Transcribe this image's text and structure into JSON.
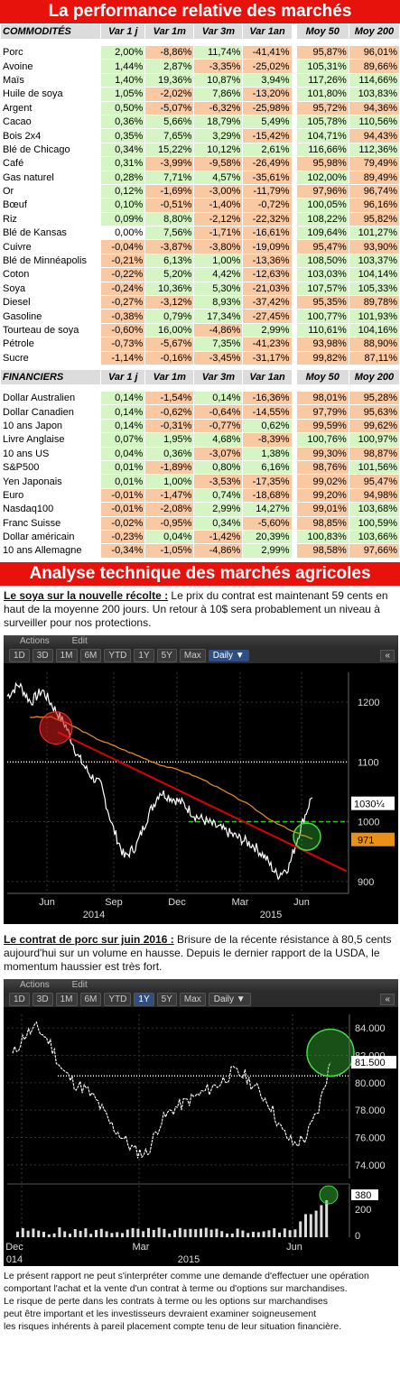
{
  "title": "La performance relative des marchés",
  "commodities": {
    "header": [
      "COMMODITÉS",
      "Var 1 j",
      "Var 1m",
      "Var 3m",
      "Var 1an",
      "Moy 50",
      "Moy 200"
    ],
    "rows": [
      [
        "Porc",
        "2,00%",
        "-8,86%",
        "11,74%",
        "-41,41%",
        "95,87%",
        "96,01%"
      ],
      [
        "Avoine",
        "1,44%",
        "2,87%",
        "-3,35%",
        "-25,02%",
        "105,31%",
        "89,66%"
      ],
      [
        "Maïs",
        "1,40%",
        "19,36%",
        "10,87%",
        "3,94%",
        "117,26%",
        "114,66%"
      ],
      [
        "Huile de soya",
        "1,05%",
        "-2,02%",
        "7,86%",
        "-13,20%",
        "101,80%",
        "103,83%"
      ],
      [
        "Argent",
        "0,50%",
        "-5,07%",
        "-6,32%",
        "-25,98%",
        "95,72%",
        "94,36%"
      ],
      [
        "Cacao",
        "0,36%",
        "5,66%",
        "18,79%",
        "5,49%",
        "105,78%",
        "110,56%"
      ],
      [
        "Bois 2x4",
        "0,35%",
        "7,65%",
        "3,29%",
        "-15,42%",
        "104,71%",
        "94,43%"
      ],
      [
        "Blé de Chicago",
        "0,34%",
        "15,22%",
        "10,12%",
        "2,61%",
        "116,66%",
        "112,36%"
      ],
      [
        "Café",
        "0,31%",
        "-3,99%",
        "-9,58%",
        "-26,49%",
        "95,98%",
        "79,49%"
      ],
      [
        "Gas naturel",
        "0,28%",
        "7,71%",
        "4,57%",
        "-35,61%",
        "102,00%",
        "89,49%"
      ],
      [
        "Or",
        "0,12%",
        "-1,69%",
        "-3,00%",
        "-11,79%",
        "97,96%",
        "96,74%"
      ],
      [
        "Bœuf",
        "0,10%",
        "-0,51%",
        "-1,40%",
        "-0,72%",
        "100,05%",
        "96,16%"
      ],
      [
        "Riz",
        "0,09%",
        "8,80%",
        "-2,12%",
        "-22,32%",
        "108,22%",
        "95,82%"
      ],
      [
        "Blé de Kansas",
        "0,00%",
        "7,56%",
        "-1,71%",
        "-16,61%",
        "109,64%",
        "101,27%"
      ],
      [
        "Cuivre",
        "-0,04%",
        "-3,87%",
        "-3,80%",
        "-19,09%",
        "95,47%",
        "93,90%"
      ],
      [
        "Blé de Minnéapolis",
        "-0,21%",
        "6,13%",
        "1,00%",
        "-13,36%",
        "108,50%",
        "103,37%"
      ],
      [
        "Coton",
        "-0,22%",
        "5,20%",
        "4,42%",
        "-12,63%",
        "103,03%",
        "104,14%"
      ],
      [
        "Soya",
        "-0,24%",
        "10,36%",
        "5,30%",
        "-21,03%",
        "107,57%",
        "105,33%"
      ],
      [
        "Diesel",
        "-0,27%",
        "-3,12%",
        "8,93%",
        "-37,42%",
        "95,35%",
        "89,78%"
      ],
      [
        "Gasoline",
        "-0,38%",
        "0,79%",
        "17,34%",
        "-27,45%",
        "100,77%",
        "101,93%"
      ],
      [
        "Tourteau de soya",
        "-0,60%",
        "16,00%",
        "-4,86%",
        "2,99%",
        "110,61%",
        "104,16%"
      ],
      [
        "Pétrole",
        "-0,73%",
        "-5,67%",
        "7,35%",
        "-41,23%",
        "93,98%",
        "88,90%"
      ],
      [
        "Sucre",
        "-1,14%",
        "-0,16%",
        "-3,45%",
        "-31,17%",
        "99,82%",
        "87,11%"
      ]
    ]
  },
  "financials": {
    "header": [
      "FINANCIERS",
      "Var 1 j",
      "Var 1m",
      "Var 3m",
      "Var 1an",
      "Moy 50",
      "Moy 200"
    ],
    "rows": [
      [
        "Dollar Australien",
        "0,14%",
        "-1,54%",
        "0,14%",
        "-16,36%",
        "98,01%",
        "95,28%"
      ],
      [
        "Dollar Canadien",
        "0,14%",
        "-0,62%",
        "-0,64%",
        "-14,55%",
        "97,79%",
        "95,63%"
      ],
      [
        "10 ans Japon",
        "0,14%",
        "-0,31%",
        "-0,77%",
        "0,62%",
        "99,59%",
        "99,62%"
      ],
      [
        "Livre Anglaise",
        "0,07%",
        "1,95%",
        "4,68%",
        "-8,39%",
        "100,76%",
        "100,97%"
      ],
      [
        "10 ans US",
        "0,04%",
        "0,36%",
        "-3,07%",
        "1,38%",
        "99,30%",
        "98,87%"
      ],
      [
        "S&P500",
        "0,01%",
        "-1,89%",
        "0,80%",
        "6,16%",
        "98,76%",
        "101,56%"
      ],
      [
        "Yen Japonais",
        "0,01%",
        "1,00%",
        "-3,53%",
        "-17,35%",
        "99,02%",
        "95,47%"
      ],
      [
        "Euro",
        "-0,01%",
        "-1,47%",
        "0,74%",
        "-18,68%",
        "99,20%",
        "94,98%"
      ],
      [
        "Nasdaq100",
        "-0,01%",
        "-2,08%",
        "2,99%",
        "14,27%",
        "99,01%",
        "103,68%"
      ],
      [
        "Franc Suisse",
        "-0,02%",
        "-0,95%",
        "0,34%",
        "-5,60%",
        "98,85%",
        "100,59%"
      ],
      [
        "Dollar américain",
        "-0,23%",
        "0,04%",
        "-1,42%",
        "20,39%",
        "100,83%",
        "103,66%"
      ],
      [
        "10 ans Allemagne",
        "-0,34%",
        "-1,05%",
        "-4,86%",
        "2,99%",
        "98,58%",
        "97,66%"
      ]
    ]
  },
  "analysis_title": "Analyse technique des marchés agricoles",
  "soya": {
    "heading": "Le soya sur la nouvelle récolte :",
    "text": " Le prix du contrat est maintenant 59 cents en haut de la moyenne 200 jours. Un retour à 10$ sera probablement un niveau à surveiller pour nos protections."
  },
  "porc": {
    "heading": "Le contrat de porc sur juin 2016 :",
    "text": " Brisure de la récente résistance à 80,5 cents aujourd'hui sur un volume en hausse. Depuis le dernier rapport de la USDA, le momentum haussier est très fort."
  },
  "chart_toolbar": {
    "actions": "Actions",
    "edit": "Edit",
    "ranges": [
      "1D",
      "3D",
      "1M",
      "6M",
      "YTD",
      "1Y",
      "5Y",
      "Max"
    ],
    "frequency": "Daily ▼",
    "back": "«",
    "minus": "−"
  },
  "chart1": {
    "y_ticks": [
      "1200",
      "1100",
      "1000",
      "900"
    ],
    "x_labels": [
      "Jun",
      "Sep",
      "Dec",
      "Mar",
      "Jun"
    ],
    "year_labels": [
      "2014",
      "2015"
    ],
    "last_price": "1030¼",
    "ma_value": "971",
    "selected_range": "",
    "colors": {
      "price": "#ffffff",
      "ma": "#e08a1e",
      "trend": "#e00000",
      "support": "#22cc22"
    }
  },
  "chart2": {
    "y_ticks": [
      "84.000",
      "82.000",
      "80.000",
      "78.000",
      "76.000",
      "74.000"
    ],
    "last_price": "81.500",
    "vol_ticks": [
      "200",
      "0"
    ],
    "vol_value": "380",
    "x_labels": [
      "Dec",
      "Mar",
      "Jun"
    ],
    "year_labels": [
      "014",
      "2015"
    ],
    "selected_range": "1Y"
  },
  "chart_data": [
    {
      "type": "line",
      "xlabel": "",
      "ylabel": "",
      "ylim": [
        880,
        1250
      ],
      "x": [
        "Jun 2014",
        "Sep 2014",
        "Dec 2014",
        "Mar 2015",
        "Jun 2015"
      ],
      "series": [
        {
          "values": [
            1215,
            1060,
            1030,
            975,
            1030
          ]
        },
        {
          "values": [
            1175,
            1125,
            1085,
            1005,
            971
          ]
        }
      ]
    },
    {
      "type": "line",
      "xlabel": "",
      "ylabel": "",
      "ylim": [
        73,
        85
      ],
      "x": [
        "Dec 2014",
        "Mar 2015",
        "Jun 2015"
      ],
      "series": [
        {
          "values": [
            83.5,
            75.0,
            81.5
          ]
        }
      ]
    }
  ],
  "footer": [
    "Le présent rapport ne peut s'interpréter comme une demande d'effectuer une opération",
    "comportant l'achat et la vente d'un contrat à terme ou d'options sur marchandises.",
    "Le risque de perte dans les contrats à terme ou les options sur marchandises",
    "peut être important et les investisseurs devraient examiner soigneusement",
    "les risques inhérents à pareil placement compte tenu de leur situation financière."
  ]
}
